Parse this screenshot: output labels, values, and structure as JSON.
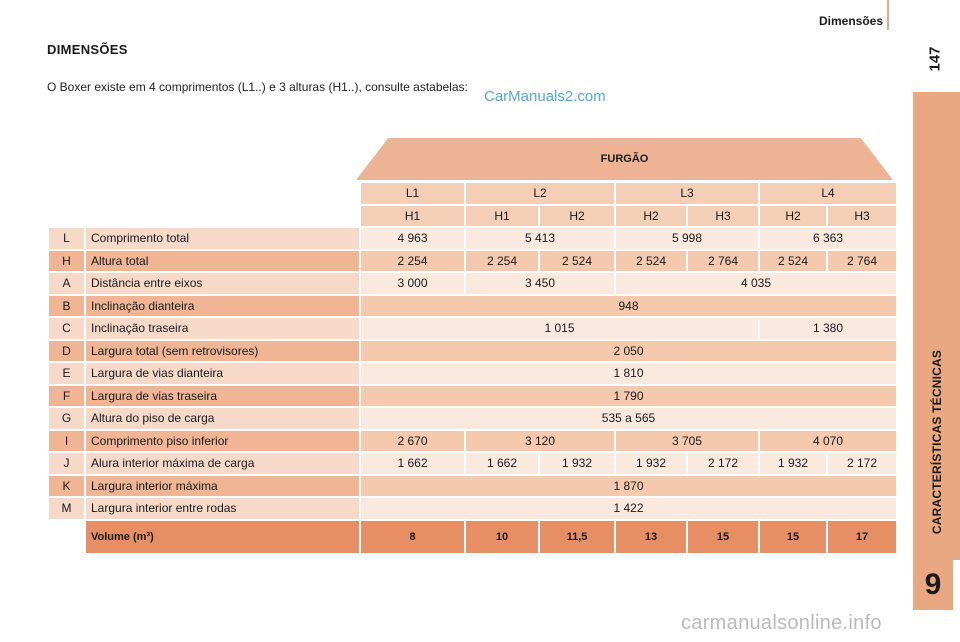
{
  "header": {
    "section": "Dimensões",
    "page_number": "147"
  },
  "side_tab": {
    "title": "CARACTERÍSTICAS TÉCNICAS",
    "chapter": "9"
  },
  "title": "DIMENSÕES",
  "intro": "O Boxer existe em 4 comprimentos (L1..) e 3 alturas (H1..), consulte astabelas:",
  "watermarks": {
    "top": "CarManuals2.com",
    "bottom": "carmanualsonline.info"
  },
  "table": {
    "group_header": "FURGÃO",
    "lengths": [
      "L1",
      "L2",
      "L3",
      "L4"
    ],
    "heights": [
      "H1",
      "H1",
      "H2",
      "H2",
      "H3",
      "H2",
      "H3"
    ],
    "rows": [
      {
        "code": "L",
        "label": "Comprimento total",
        "values": [
          "4 963",
          "5 413",
          "5 998",
          "6 363"
        ]
      },
      {
        "code": "H",
        "label": "Altura total",
        "values": [
          "2 254",
          "2 254",
          "2 524",
          "2 524",
          "2 764",
          "2 524",
          "2 764"
        ]
      },
      {
        "code": "A",
        "label": "Distância entre eixos",
        "values": [
          "3 000",
          "3 450",
          "4 035"
        ]
      },
      {
        "code": "B",
        "label": "Inclinação dianteira",
        "values": [
          "948"
        ]
      },
      {
        "code": "C",
        "label": "Inclinação traseira",
        "values": [
          "1 015",
          "1 380"
        ]
      },
      {
        "code": "D",
        "label": "Largura total (sem retrovisores)",
        "values": [
          "2 050"
        ]
      },
      {
        "code": "E",
        "label": "Largura de vias dianteira",
        "values": [
          "1 810"
        ]
      },
      {
        "code": "F",
        "label": "Largura de vias traseira",
        "values": [
          "1 790"
        ]
      },
      {
        "code": "G",
        "label": "Altura do piso de carga",
        "values": [
          "535 a 565"
        ]
      },
      {
        "code": "I",
        "label": "Comprimento piso inferior",
        "values": [
          "2 670",
          "3 120",
          "3 705",
          "4 070"
        ]
      },
      {
        "code": "J",
        "label": "Alura interior máxima de carga",
        "values": [
          "1 662",
          "1 662",
          "1 932",
          "1 932",
          "2 172",
          "1 932",
          "2 172"
        ]
      },
      {
        "code": "K",
        "label": "Largura interior máxima",
        "values": [
          "1 870"
        ]
      },
      {
        "code": "M",
        "label": "Largura interior entre rodas",
        "values": [
          "1 422"
        ]
      }
    ],
    "volume": {
      "label": "Volume (m³)",
      "values": [
        "8",
        "10",
        "11,5",
        "13",
        "15",
        "15",
        "17"
      ]
    }
  }
}
